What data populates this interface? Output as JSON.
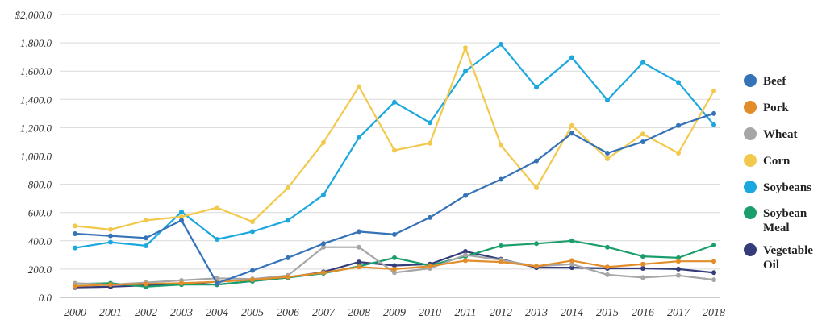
{
  "chart_data": {
    "type": "line",
    "title": "",
    "xlabel": "",
    "ylabel": "",
    "x": [
      2000,
      2001,
      2002,
      2003,
      2004,
      2005,
      2006,
      2007,
      2008,
      2009,
      2010,
      2011,
      2012,
      2013,
      2014,
      2015,
      2016,
      2017,
      2018
    ],
    "x_tick_labels": [
      "2000",
      "2001",
      "2002",
      "2003",
      "2004",
      "2005",
      "2006",
      "2007",
      "2008",
      "2009",
      "2010",
      "2011",
      "2012",
      "2013",
      "2014",
      "2015",
      "2016",
      "2017",
      "2018"
    ],
    "ylim": [
      0,
      2000
    ],
    "y_ticks": [
      0,
      200,
      400,
      600,
      800,
      1000,
      1200,
      1400,
      1600,
      1800,
      2000
    ],
    "y_tick_labels": [
      "0.0",
      "200.0",
      "400.0",
      "600.0",
      "800.0",
      "1,000.0",
      "1,200.0",
      "1,400.0",
      "1,600.0",
      "1,800.0",
      "$2,000.0"
    ],
    "grid": "horizontal",
    "legend_position": "right",
    "series": [
      {
        "name": "Beef",
        "color": "#3572b8",
        "values": [
          450,
          435,
          420,
          545,
          100,
          190,
          280,
          380,
          465,
          445,
          565,
          720,
          835,
          965,
          1160,
          1020,
          1100,
          1215,
          1300
        ]
      },
      {
        "name": "Pork",
        "color": "#e28c2a",
        "values": [
          80,
          90,
          95,
          100,
          110,
          125,
          145,
          175,
          215,
          200,
          220,
          260,
          250,
          220,
          260,
          215,
          235,
          255,
          255
        ]
      },
      {
        "name": "Wheat",
        "color": "#a6a6a6",
        "values": [
          100,
          90,
          105,
          120,
          135,
          130,
          155,
          355,
          355,
          175,
          205,
          300,
          265,
          220,
          235,
          160,
          140,
          155,
          125
        ]
      },
      {
        "name": "Corn",
        "color": "#f2c94c",
        "values": [
          505,
          480,
          545,
          570,
          635,
          535,
          775,
          1095,
          1490,
          1040,
          1090,
          1765,
          1075,
          775,
          1215,
          980,
          1155,
          1020,
          1460
        ]
      },
      {
        "name": "Soybeans",
        "color": "#1ba8de",
        "values": [
          350,
          390,
          365,
          605,
          410,
          465,
          545,
          725,
          1130,
          1380,
          1235,
          1600,
          1790,
          1485,
          1695,
          1395,
          1660,
          1520,
          1220
        ]
      },
      {
        "name": "Soybean\nMeal",
        "color": "#1a9e6b",
        "values": [
          95,
          100,
          75,
          90,
          90,
          115,
          140,
          170,
          220,
          280,
          225,
          290,
          365,
          380,
          400,
          355,
          290,
          280,
          370
        ]
      },
      {
        "name": "Vegetable\nOil",
        "color": "#343c7a",
        "values": [
          70,
          75,
          85,
          100,
          90,
          115,
          140,
          180,
          250,
          225,
          235,
          325,
          270,
          210,
          210,
          205,
          205,
          200,
          175
        ]
      }
    ]
  }
}
